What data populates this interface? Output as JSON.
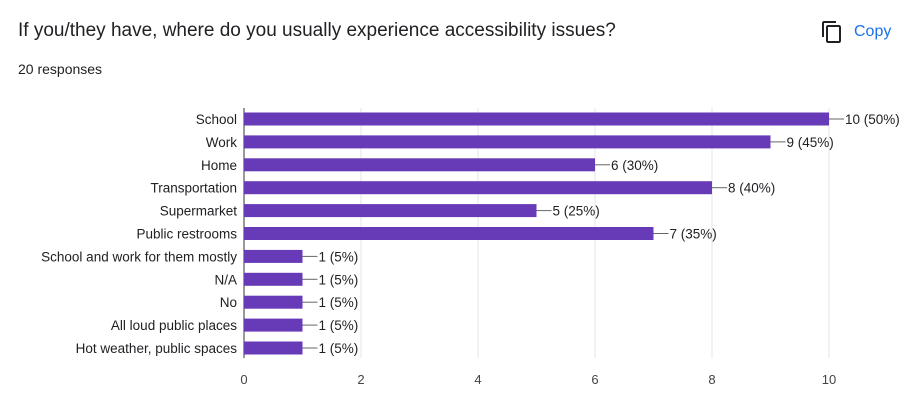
{
  "header": {
    "title": "If you/they have, where do you usually experience accessibility issues?",
    "responses": "20 responses",
    "copy_label": "Copy"
  },
  "colors": {
    "bar": "#673ab7",
    "accent": "#1a73e8",
    "grid": "#e6e6e6",
    "axis": "#333333"
  },
  "icons": {
    "copy": "copy-icon"
  },
  "chart_data": {
    "type": "bar",
    "orientation": "horizontal",
    "categories": [
      "School",
      "Work",
      "Home",
      "Transportation",
      "Supermarket",
      "Public restrooms",
      "School and work for them mostly",
      "N/A",
      "No",
      "All loud public places",
      "Hot weather, public spaces"
    ],
    "values": [
      10,
      9,
      6,
      8,
      5,
      7,
      1,
      1,
      1,
      1,
      1
    ],
    "data_labels": [
      "10 (50%)",
      "9 (45%)",
      "6 (30%)",
      "8 (40%)",
      "5 (25%)",
      "7 (35%)",
      "1 (5%)",
      "1 (5%)",
      "1 (5%)",
      "1 (5%)",
      "1 (5%)"
    ],
    "xlim": [
      0,
      10
    ],
    "xticks": [
      0,
      2,
      4,
      6,
      8,
      10
    ],
    "grid": true,
    "legend": "none"
  }
}
